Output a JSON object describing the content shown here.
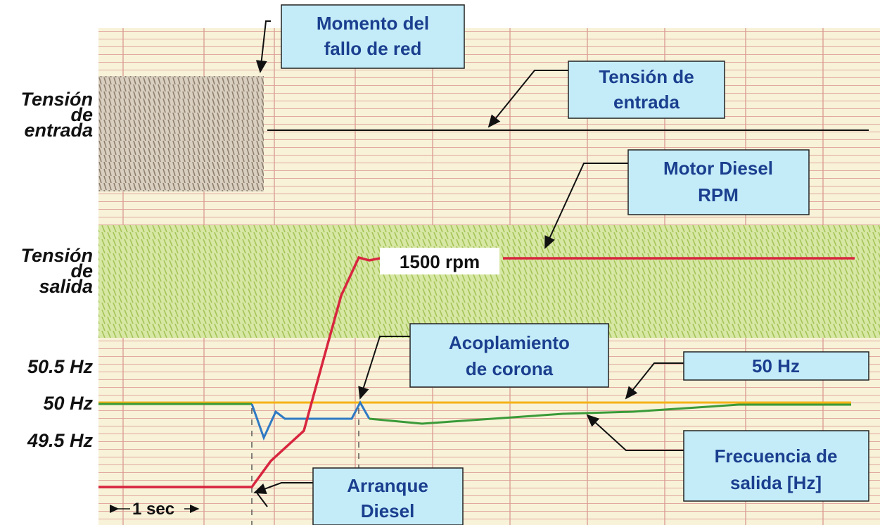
{
  "left_labels": {
    "input_voltage": [
      "Tensión",
      "de",
      "entrada"
    ],
    "output_voltage": [
      "Tensión",
      "de",
      "salida"
    ],
    "hz_high": "50.5 Hz",
    "hz_nominal": "50 Hz",
    "hz_low": "49.5 Hz"
  },
  "callouts": {
    "grid_failure": [
      "Momento del",
      "fallo de red"
    ],
    "input_voltage": [
      "Tensión de",
      "entrada"
    ],
    "diesel_rpm": [
      "Motor Diesel",
      "RPM"
    ],
    "rpm_value": "1500 rpm",
    "coupling": [
      "Acoplamiento",
      "de corona"
    ],
    "nominal_frequency": "50 Hz",
    "output_frequency": [
      "Frecuencia de",
      "salida [Hz]"
    ],
    "diesel_start": [
      "Arranque",
      "Diesel"
    ]
  },
  "time_scale": "1 sec"
}
